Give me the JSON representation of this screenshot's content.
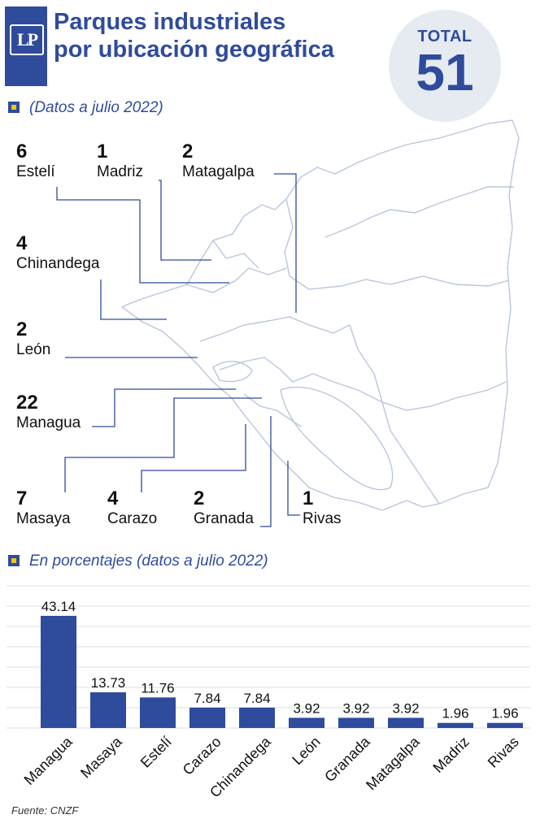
{
  "header": {
    "title_line1": "Parques industriales",
    "title_line2": "por ubicación geográfica",
    "logo_text": "LP",
    "total_label": "TOTAL",
    "total_value": "51"
  },
  "map_section": {
    "subtitle": "(Datos a julio 2022)",
    "departments": [
      {
        "name": "Estelí",
        "count": "6"
      },
      {
        "name": "Madriz",
        "count": "1"
      },
      {
        "name": "Matagalpa",
        "count": "2"
      },
      {
        "name": "Chinandega",
        "count": "4"
      },
      {
        "name": "León",
        "count": "2"
      },
      {
        "name": "Managua",
        "count": "22"
      },
      {
        "name": "Masaya",
        "count": "7"
      },
      {
        "name": "Carazo",
        "count": "4"
      },
      {
        "name": "Granada",
        "count": "2"
      },
      {
        "name": "Rivas",
        "count": "1"
      }
    ]
  },
  "chart_section": {
    "subtitle": "En porcentajes (datos a julio 2022)"
  },
  "chart_data": {
    "type": "bar",
    "title": "",
    "xlabel": "",
    "ylabel": "",
    "categories": [
      "Managua",
      "Masaya",
      "Estelí",
      "Carazo",
      "Chinandega",
      "León",
      "Granada",
      "Matagalpa",
      "Madriz",
      "Rivas"
    ],
    "values": [
      43.14,
      13.73,
      11.76,
      7.84,
      7.84,
      3.92,
      3.92,
      3.92,
      1.96,
      1.96
    ],
    "value_labels": [
      "43.14",
      "13.73",
      "11.76",
      "7.84",
      "7.84",
      "3.92",
      "3.92",
      "3.92",
      "1.96",
      "1.96"
    ],
    "ylim": [
      0,
      45
    ],
    "grid": true,
    "bar_color": "#2f4b9c"
  },
  "footer": {
    "source": "Fuente: CNZF"
  },
  "colors": {
    "brand_blue": "#2f4b9c",
    "accent_yellow": "#f1c40f",
    "map_outline": "#b9c6dc",
    "leader_line": "#2f4b9c",
    "grid_line": "#d7dce6",
    "total_bg": "#e6ebf2"
  }
}
